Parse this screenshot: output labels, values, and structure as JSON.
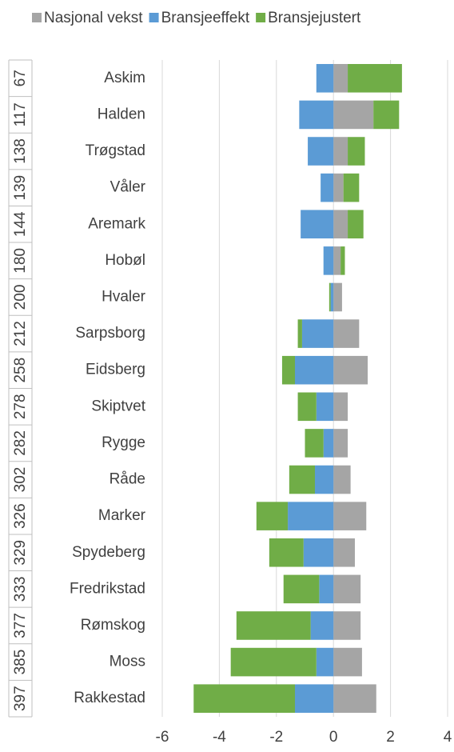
{
  "chart_data": {
    "type": "bar",
    "orientation": "horizontal",
    "stacked": true,
    "categories": [
      "Askim",
      "Halden",
      "Trøgstad",
      "Våler",
      "Aremark",
      "Hobøl",
      "Hvaler",
      "Sarpsborg",
      "Eidsberg",
      "Skiptvet",
      "Rygge",
      "Råde",
      "Marker",
      "Spydeberg",
      "Fredrikstad",
      "Rømskog",
      "Moss",
      "Rakkestad"
    ],
    "ranks": [
      "67",
      "117",
      "138",
      "139",
      "144",
      "180",
      "200",
      "212",
      "258",
      "278",
      "282",
      "302",
      "326",
      "329",
      "333",
      "377",
      "385",
      "397"
    ],
    "series": [
      {
        "name": "Nasjonal vekst",
        "color": "#a5a5a5",
        "values": [
          0.5,
          1.4,
          0.5,
          0.35,
          0.5,
          0.25,
          0.3,
          0.9,
          1.2,
          0.5,
          0.5,
          0.6,
          1.15,
          0.75,
          0.95,
          0.95,
          1.0,
          1.5
        ]
      },
      {
        "name": "Bransjeeffekt",
        "color": "#5b9bd5",
        "values": [
          -0.6,
          -1.2,
          -0.9,
          -0.45,
          -1.15,
          -0.35,
          -0.1,
          -1.1,
          -1.35,
          -0.6,
          -0.35,
          -0.65,
          -1.6,
          -1.05,
          -0.5,
          -0.8,
          -0.6,
          -1.35
        ]
      },
      {
        "name": "Bransjejustert",
        "color": "#70ad47",
        "values": [
          1.9,
          0.9,
          0.6,
          0.55,
          0.55,
          0.15,
          -0.05,
          -0.15,
          -0.45,
          -0.65,
          -0.65,
          -0.9,
          -1.1,
          -1.2,
          -1.25,
          -2.6,
          -3.0,
          -3.55
        ]
      }
    ],
    "xlim": [
      -6,
      4
    ],
    "xticks": [
      -6,
      -4,
      -2,
      0,
      2,
      4
    ],
    "grid": true,
    "legend": "top"
  }
}
